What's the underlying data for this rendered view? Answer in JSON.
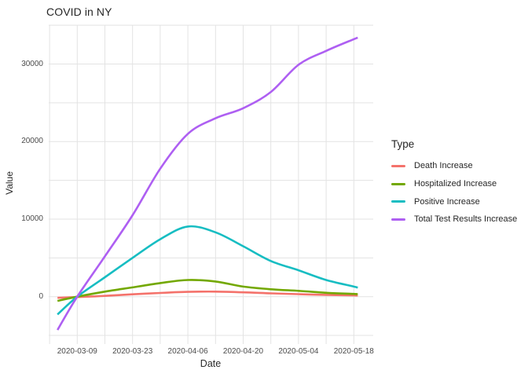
{
  "chart_data": {
    "type": "line",
    "title": "COVID in NY",
    "xlabel": "Date",
    "ylabel": "Value",
    "legend_title": "Type",
    "legend_position": "right",
    "grid": true,
    "background": "#ffffff",
    "gridline_color": "#e3e3e3",
    "x": [
      "2020-03-04",
      "2020-03-09",
      "2020-03-16",
      "2020-03-23",
      "2020-03-30",
      "2020-04-06",
      "2020-04-13",
      "2020-04-20",
      "2020-04-27",
      "2020-05-04",
      "2020-05-11",
      "2020-05-18",
      "2020-05-19"
    ],
    "series": [
      {
        "name": "Death Increase",
        "color": "#F4726B",
        "values": [
          -150,
          -50,
          100,
          300,
          480,
          620,
          650,
          560,
          430,
          320,
          230,
          160,
          150
        ]
      },
      {
        "name": "Hospitalized Increase",
        "color": "#73A802",
        "values": [
          -550,
          0,
          650,
          1200,
          1750,
          2150,
          1950,
          1300,
          950,
          750,
          500,
          350,
          320
        ]
      },
      {
        "name": "Positive Increase",
        "color": "#17BDC2",
        "values": [
          -2300,
          0,
          2500,
          5000,
          7400,
          9050,
          8300,
          6500,
          4600,
          3400,
          2150,
          1300,
          1150
        ]
      },
      {
        "name": "Total Test Results Increase",
        "color": "#AE5FF2",
        "values": [
          -4300,
          0,
          5200,
          10500,
          16500,
          21000,
          23000,
          24300,
          26400,
          29900,
          31700,
          33200,
          33400
        ]
      }
    ],
    "x_tick_labels": [
      "2020-03-09",
      "2020-03-23",
      "2020-04-06",
      "2020-04-20",
      "2020-05-04",
      "2020-05-18"
    ],
    "x_gridlines": [
      "2020-03-02",
      "2020-03-09",
      "2020-03-16",
      "2020-03-23",
      "2020-03-30",
      "2020-04-06",
      "2020-04-13",
      "2020-04-20",
      "2020-04-27",
      "2020-05-04",
      "2020-05-11",
      "2020-05-18"
    ],
    "y_ticks": [
      0,
      10000,
      20000,
      30000
    ],
    "y_gridlines": [
      -5000,
      0,
      5000,
      10000,
      15000,
      20000,
      25000,
      30000,
      35000
    ],
    "ylim": [
      -6500,
      35500
    ],
    "xlim": [
      "2020-03-02",
      "2020-05-23"
    ]
  }
}
